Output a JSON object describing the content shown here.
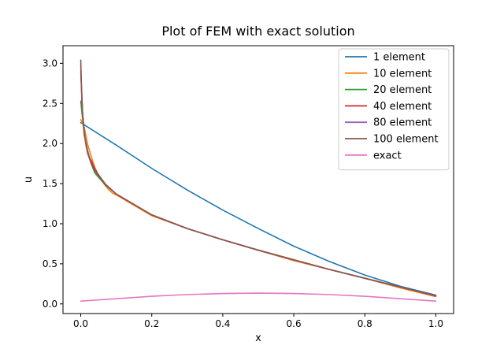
{
  "chart_data": {
    "type": "line",
    "title": "Plot of FEM with exact solution",
    "xlabel": "x",
    "ylabel": "u",
    "xlim": [
      -0.05,
      1.05
    ],
    "ylim": [
      -0.12,
      3.22
    ],
    "xticks": [
      0.0,
      0.2,
      0.4,
      0.6,
      0.8,
      1.0
    ],
    "xtick_labels": [
      "0.0",
      "0.2",
      "0.4",
      "0.6",
      "0.8",
      "1.0"
    ],
    "yticks": [
      0.0,
      0.5,
      1.0,
      1.5,
      2.0,
      2.5,
      3.0
    ],
    "ytick_labels": [
      "0.0",
      "0.5",
      "1.0",
      "1.5",
      "2.0",
      "2.5",
      "3.0"
    ],
    "grid": false,
    "legend_position": "top-right",
    "series": [
      {
        "name": "1 element",
        "color": "#1f77b4",
        "x": [
          0.0,
          0.1,
          0.2,
          0.3,
          0.4,
          0.5,
          0.6,
          0.7,
          0.8,
          0.9,
          1.0
        ],
        "y": [
          2.26,
          1.98,
          1.69,
          1.42,
          1.17,
          0.94,
          0.72,
          0.53,
          0.36,
          0.22,
          0.11
        ]
      },
      {
        "name": "10 element",
        "color": "#ff7f0e",
        "x": [
          0.0,
          0.01,
          0.02,
          0.03,
          0.04,
          0.05,
          0.06,
          0.07,
          0.08,
          0.09,
          0.1,
          0.2,
          0.3,
          0.4,
          0.5,
          0.6,
          0.7,
          0.8,
          0.9,
          1.0
        ],
        "y": [
          2.3,
          2.2,
          1.98,
          1.83,
          1.7,
          1.6,
          1.53,
          1.47,
          1.42,
          1.38,
          1.36,
          1.1,
          0.94,
          0.8,
          0.67,
          0.54,
          0.43,
          0.32,
          0.2,
          0.09
        ]
      },
      {
        "name": "20 element",
        "color": "#2ca02c",
        "x": [
          0.0,
          0.01,
          0.02,
          0.03,
          0.04,
          0.05,
          0.07,
          0.1,
          0.2,
          0.3,
          0.4,
          0.5,
          0.6,
          0.7,
          0.8,
          0.9,
          1.0
        ],
        "y": [
          2.53,
          2.1,
          1.9,
          1.74,
          1.63,
          1.58,
          1.48,
          1.37,
          1.11,
          0.94,
          0.8,
          0.67,
          0.55,
          0.43,
          0.32,
          0.21,
          0.1
        ]
      },
      {
        "name": "40 element",
        "color": "#d62728",
        "x": [
          0.0,
          0.005,
          0.01,
          0.015,
          0.02,
          0.025,
          0.03,
          0.04,
          0.05,
          0.07,
          0.1,
          0.2,
          0.3,
          0.4,
          0.5,
          0.6,
          0.7,
          0.8,
          0.9,
          1.0
        ],
        "y": [
          2.9,
          2.4,
          2.12,
          1.98,
          1.87,
          1.82,
          1.78,
          1.68,
          1.61,
          1.49,
          1.37,
          1.11,
          0.94,
          0.8,
          0.67,
          0.55,
          0.43,
          0.32,
          0.21,
          0.1
        ]
      },
      {
        "name": "80 element",
        "color": "#9467bd",
        "x": [
          0.0,
          0.003,
          0.006,
          0.01,
          0.015,
          0.02,
          0.03,
          0.04,
          0.05,
          0.07,
          0.1,
          0.2,
          0.3,
          0.4,
          0.5,
          0.6,
          0.7,
          0.8,
          0.9,
          1.0
        ],
        "y": [
          2.98,
          2.55,
          2.3,
          2.12,
          1.97,
          1.87,
          1.74,
          1.66,
          1.6,
          1.49,
          1.37,
          1.11,
          0.94,
          0.8,
          0.67,
          0.55,
          0.43,
          0.32,
          0.21,
          0.1
        ]
      },
      {
        "name": "100 element",
        "color": "#8c564b",
        "x": [
          0.0,
          0.002,
          0.005,
          0.01,
          0.015,
          0.02,
          0.03,
          0.04,
          0.05,
          0.07,
          0.1,
          0.2,
          0.3,
          0.4,
          0.5,
          0.6,
          0.7,
          0.8,
          0.9,
          1.0
        ],
        "y": [
          3.04,
          2.7,
          2.38,
          2.14,
          1.98,
          1.88,
          1.75,
          1.66,
          1.6,
          1.49,
          1.37,
          1.11,
          0.94,
          0.8,
          0.67,
          0.55,
          0.43,
          0.32,
          0.21,
          0.1
        ]
      },
      {
        "name": "exact",
        "color": "#e377c2",
        "x": [
          0.0,
          0.1,
          0.2,
          0.3,
          0.4,
          0.5,
          0.6,
          0.7,
          0.8,
          0.9,
          1.0
        ],
        "y": [
          0.035,
          0.065,
          0.095,
          0.117,
          0.13,
          0.135,
          0.13,
          0.117,
          0.095,
          0.065,
          0.035
        ]
      }
    ]
  }
}
